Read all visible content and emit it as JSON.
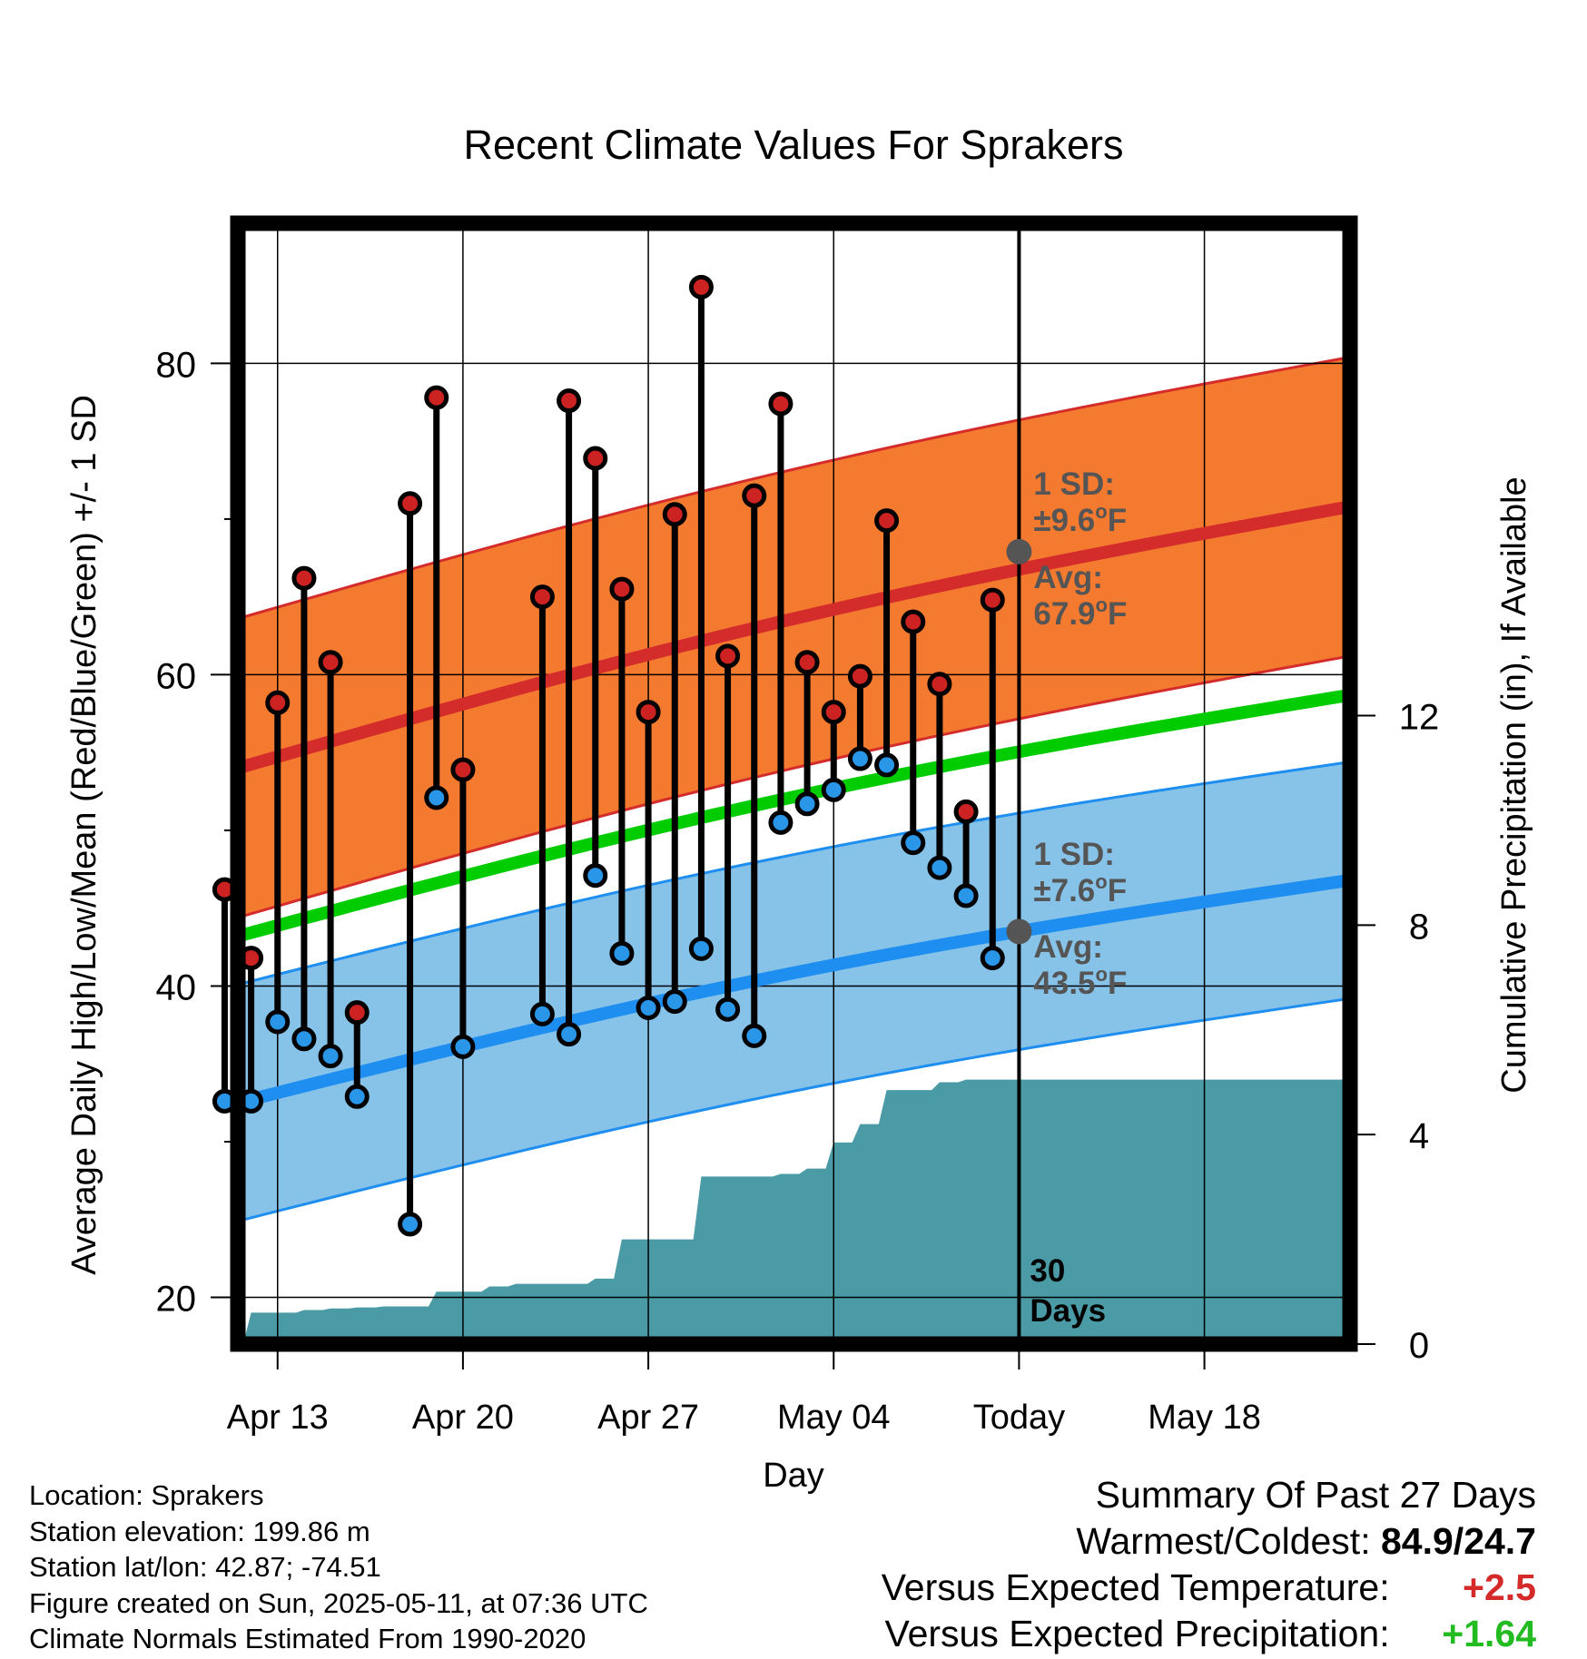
{
  "chart_data": {
    "type": "line",
    "title": "Recent Climate Values For Sprakers",
    "xlabel": "Day",
    "ylabel": "Average Daily High/Low/Mean (Red/Blue/Green) +/- 1 SD",
    "ylabel_right": "Cumulative Precipitation (in), If Available",
    "ylim": [
      17.0,
      89.0
    ],
    "ylim_right": [
      0,
      21.4
    ],
    "yticks": [
      20,
      40,
      60,
      80
    ],
    "yticks_right": [
      0,
      4,
      8,
      12
    ],
    "xlim": [
      -1.5,
      40.5
    ],
    "x_tick_positions": [
      0,
      7,
      14,
      21,
      28,
      35
    ],
    "x_tick_labels": [
      "Apr 13",
      "Apr 20",
      "Apr 27",
      "May 04",
      "Today",
      "May 18"
    ],
    "today_x": 28,
    "grid": true,
    "normals": {
      "x": [
        -1.5,
        40.5
      ],
      "high_mean": [
        54.0,
        70.8
      ],
      "high_sd": 9.6,
      "low_mean": [
        32.5,
        46.8
      ],
      "low_sd": 7.6,
      "avg_mean": [
        43.2,
        58.7
      ]
    },
    "daily": [
      {
        "x": -2,
        "high": 46.2,
        "low": 32.6
      },
      {
        "x": -1,
        "high": 41.8,
        "low": 32.6
      },
      {
        "x": 0,
        "high": 58.2,
        "low": 37.7
      },
      {
        "x": 1,
        "high": 66.2,
        "low": 36.6
      },
      {
        "x": 2,
        "high": 60.8,
        "low": 35.5
      },
      {
        "x": 3,
        "high": 38.3,
        "low": 32.9
      },
      {
        "x": 5,
        "high": 71.0,
        "low": 24.7
      },
      {
        "x": 6,
        "high": 77.8,
        "low": 52.1
      },
      {
        "x": 7,
        "high": 53.9,
        "low": 36.1
      },
      {
        "x": 10,
        "high": 65.0,
        "low": 38.2
      },
      {
        "x": 11,
        "high": 77.6,
        "low": 36.9
      },
      {
        "x": 12,
        "high": 73.9,
        "low": 47.1
      },
      {
        "x": 13,
        "high": 65.5,
        "low": 42.1
      },
      {
        "x": 14,
        "high": 57.6,
        "low": 38.6
      },
      {
        "x": 15,
        "high": 70.3,
        "low": 39.0
      },
      {
        "x": 16,
        "high": 84.9,
        "low": 42.4
      },
      {
        "x": 17,
        "high": 61.2,
        "low": 38.5
      },
      {
        "x": 18,
        "high": 71.5,
        "low": 36.8
      },
      {
        "x": 19,
        "high": 77.4,
        "low": 50.5
      },
      {
        "x": 20,
        "high": 60.8,
        "low": 51.7
      },
      {
        "x": 21,
        "high": 57.6,
        "low": 52.6
      },
      {
        "x": 22,
        "high": 59.9,
        "low": 54.6
      },
      {
        "x": 23,
        "high": 69.9,
        "low": 54.2
      },
      {
        "x": 24,
        "high": 63.4,
        "low": 49.2
      },
      {
        "x": 25,
        "high": 59.4,
        "low": 47.6
      },
      {
        "x": 26,
        "high": 51.2,
        "low": 45.8
      },
      {
        "x": 27,
        "high": 64.8,
        "low": 41.8
      }
    ],
    "precipitation": {
      "x": [
        -1.5,
        -1,
        0,
        1,
        2,
        3,
        4,
        5,
        6,
        7,
        8,
        9,
        10,
        11,
        12,
        13,
        14,
        15,
        16,
        17,
        18,
        19,
        20,
        21,
        22,
        23,
        24,
        25,
        26,
        27,
        28,
        40.5
      ],
      "y": [
        0.0,
        0.6,
        0.6,
        0.65,
        0.68,
        0.7,
        0.72,
        0.72,
        1.0,
        1.0,
        1.1,
        1.15,
        1.15,
        1.15,
        1.25,
        2.0,
        2.0,
        2.0,
        3.2,
        3.2,
        3.2,
        3.25,
        3.35,
        3.85,
        4.2,
        4.85,
        4.85,
        5.0,
        5.05,
        5.05,
        5.05,
        5.05
      ]
    },
    "annotations": {
      "high_sd_line1": "1 SD:",
      "high_sd_line2": "±9.6",
      "high_avg_line1": "Avg:",
      "high_avg_line2": "67.9",
      "high_avg_value": 67.9,
      "low_sd_line1": "1 SD:",
      "low_sd_line2": "±7.6",
      "low_avg_line1": "Avg:",
      "low_avg_line2": "43.5",
      "low_avg_value": 43.5,
      "unit": "F",
      "degree": "o",
      "days_line1": "30",
      "days_line2": "Days"
    },
    "colors": {
      "high_band": "#f47a30",
      "high_line": "#d42b2b",
      "low_band": "#87c3e8",
      "low_line": "#1e8ef0",
      "avg_line": "#00cc00",
      "precip": "#4a9ba5",
      "high_dot": "#cc2222",
      "low_dot": "#2a96e8",
      "annot": "#555555"
    }
  },
  "info": {
    "location": "Location: Sprakers",
    "elevation": "Station elevation: 199.86 m",
    "latlon": "Station lat/lon: 42.87; -74.51",
    "created": "Figure created on Sun, 2025-05-11, at 07:36 UTC",
    "normals": "Climate Normals Estimated From 1990-2020"
  },
  "summary": {
    "title": "Summary Of Past 27 Days",
    "warm_cold_label": "Warmest/Coldest:",
    "warm_cold_value": "84.9/24.7",
    "temp_label": "Versus Expected Temperature:",
    "temp_value": "+2.5",
    "precip_label": "Versus Expected Precipitation:",
    "precip_value": "+1.64"
  }
}
